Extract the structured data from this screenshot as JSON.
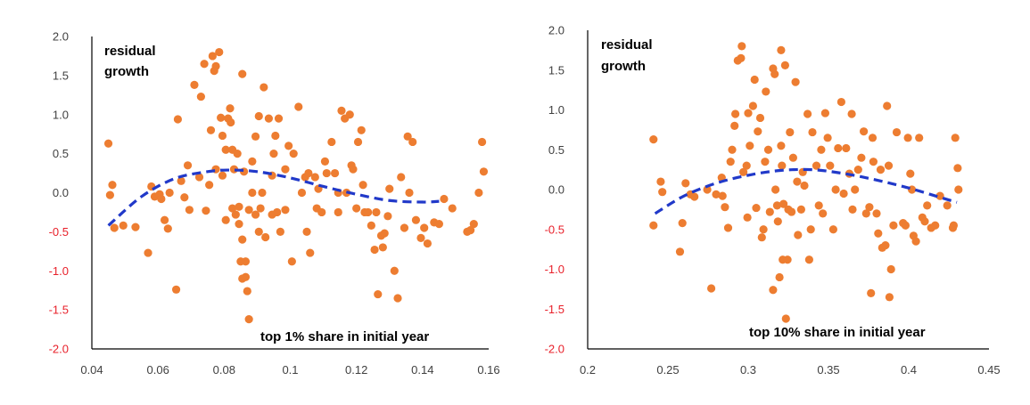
{
  "colors": {
    "point": "#ED7D31",
    "fit": "#2139C9",
    "axis": "#000000",
    "tick_positive": "#404040",
    "tick_negative": "#E8202A"
  },
  "chart_data": [
    {
      "type": "scatter",
      "ylabel": "residual\ngrowth",
      "ylabel_line1": "residual",
      "ylabel_line2": "growth",
      "xlabel": "top 1% share in initial year",
      "xlim": [
        0.04,
        0.16
      ],
      "ylim": [
        -2.0,
        2.0
      ],
      "x_ticks": [
        "0.04",
        "0.06",
        "0.08",
        "0.1",
        "0.12",
        "0.14",
        "0.16"
      ],
      "y_ticks": [
        "2.0",
        "1.5",
        "1.0",
        "0.5",
        "0.0",
        "-0.5",
        "-1.0",
        "-1.5",
        "-2.0"
      ],
      "grid": false,
      "fit_line": {
        "style": "dashed",
        "x": [
          0.045,
          0.055,
          0.065,
          0.075,
          0.082,
          0.09,
          0.1,
          0.11,
          0.12,
          0.13,
          0.14,
          0.145
        ],
        "y": [
          -0.42,
          -0.05,
          0.18,
          0.27,
          0.29,
          0.27,
          0.19,
          0.08,
          -0.02,
          -0.1,
          -0.12,
          -0.11
        ]
      },
      "points": [
        [
          0.045,
          0.63
        ],
        [
          0.0455,
          -0.03
        ],
        [
          0.0462,
          0.1
        ],
        [
          0.0468,
          -0.45
        ],
        [
          0.0495,
          -0.42
        ],
        [
          0.0532,
          -0.44
        ],
        [
          0.057,
          -0.77
        ],
        [
          0.058,
          0.08
        ],
        [
          0.059,
          -0.05
        ],
        [
          0.0605,
          -0.02
        ],
        [
          0.061,
          -0.08
        ],
        [
          0.062,
          -0.35
        ],
        [
          0.063,
          -0.46
        ],
        [
          0.0635,
          0.0
        ],
        [
          0.0655,
          -1.24
        ],
        [
          0.066,
          0.94
        ],
        [
          0.067,
          0.15
        ],
        [
          0.068,
          -0.06
        ],
        [
          0.069,
          0.35
        ],
        [
          0.0695,
          -0.22
        ],
        [
          0.071,
          1.38
        ],
        [
          0.073,
          1.23
        ],
        [
          0.0725,
          0.2
        ],
        [
          0.074,
          1.65
        ],
        [
          0.0745,
          -0.23
        ],
        [
          0.0755,
          0.1
        ],
        [
          0.0765,
          1.75
        ],
        [
          0.0775,
          1.62
        ],
        [
          0.077,
          1.56
        ],
        [
          0.0785,
          1.8
        ],
        [
          0.076,
          0.8
        ],
        [
          0.0775,
          0.3
        ],
        [
          0.079,
          0.96
        ],
        [
          0.0795,
          0.73
        ],
        [
          0.0795,
          0.22
        ],
        [
          0.0805,
          -0.35
        ],
        [
          0.0812,
          0.95
        ],
        [
          0.0818,
          1.08
        ],
        [
          0.082,
          0.9
        ],
        [
          0.0805,
          0.55
        ],
        [
          0.0825,
          0.55
        ],
        [
          0.083,
          0.3
        ],
        [
          0.0825,
          -0.2
        ],
        [
          0.084,
          0.5
        ],
        [
          0.0835,
          -0.28
        ],
        [
          0.0845,
          -0.4
        ],
        [
          0.0855,
          1.52
        ],
        [
          0.086,
          0.27
        ],
        [
          0.0845,
          -0.18
        ],
        [
          0.0855,
          -0.6
        ],
        [
          0.085,
          -0.88
        ],
        [
          0.0865,
          -0.88
        ],
        [
          0.0855,
          -1.1
        ],
        [
          0.0865,
          -1.08
        ],
        [
          0.087,
          -1.26
        ],
        [
          0.0875,
          -1.62
        ],
        [
          0.0885,
          0.4
        ],
        [
          0.0885,
          0.0
        ],
        [
          0.0875,
          -0.22
        ],
        [
          0.0895,
          0.72
        ],
        [
          0.0895,
          -0.28
        ],
        [
          0.0905,
          0.98
        ],
        [
          0.091,
          -0.2
        ],
        [
          0.0905,
          -0.5
        ],
        [
          0.092,
          1.35
        ],
        [
          0.0915,
          0.0
        ],
        [
          0.0925,
          -0.57
        ],
        [
          0.0935,
          0.95
        ],
        [
          0.0945,
          0.22
        ],
        [
          0.0945,
          -0.28
        ],
        [
          0.0955,
          0.73
        ],
        [
          0.095,
          0.5
        ],
        [
          0.096,
          -0.25
        ],
        [
          0.0965,
          0.95
        ],
        [
          0.097,
          -0.5
        ],
        [
          0.0985,
          0.3
        ],
        [
          0.0985,
          -0.22
        ],
        [
          0.0995,
          0.6
        ],
        [
          0.1005,
          -0.88
        ],
        [
          0.101,
          0.5
        ],
        [
          0.1025,
          1.1
        ],
        [
          0.1035,
          0.0
        ],
        [
          0.1045,
          0.2
        ],
        [
          0.105,
          -0.5
        ],
        [
          0.1055,
          0.25
        ],
        [
          0.106,
          -0.77
        ],
        [
          0.1075,
          0.2
        ],
        [
          0.108,
          -0.2
        ],
        [
          0.1085,
          0.05
        ],
        [
          0.1095,
          -0.25
        ],
        [
          0.1105,
          0.4
        ],
        [
          0.111,
          0.25
        ],
        [
          0.1125,
          0.65
        ],
        [
          0.1135,
          0.25
        ],
        [
          0.1145,
          0.0
        ],
        [
          0.1145,
          -0.25
        ],
        [
          0.1155,
          1.05
        ],
        [
          0.1165,
          0.95
        ],
        [
          0.117,
          0.0
        ],
        [
          0.118,
          1.0
        ],
        [
          0.1185,
          0.35
        ],
        [
          0.119,
          0.3
        ],
        [
          0.12,
          -0.2
        ],
        [
          0.1205,
          0.65
        ],
        [
          0.1215,
          0.8
        ],
        [
          0.122,
          0.1
        ],
        [
          0.1225,
          -0.25
        ],
        [
          0.1235,
          -0.25
        ],
        [
          0.1245,
          -0.42
        ],
        [
          0.1255,
          -0.73
        ],
        [
          0.126,
          -0.25
        ],
        [
          0.1265,
          -1.3
        ],
        [
          0.1275,
          -0.55
        ],
        [
          0.128,
          -0.7
        ],
        [
          0.1285,
          -0.52
        ],
        [
          0.1295,
          -0.3
        ],
        [
          0.13,
          0.05
        ],
        [
          0.1315,
          -1.0
        ],
        [
          0.1325,
          -1.35
        ],
        [
          0.1335,
          0.2
        ],
        [
          0.1345,
          -0.45
        ],
        [
          0.1355,
          0.72
        ],
        [
          0.136,
          0.0
        ],
        [
          0.137,
          0.65
        ],
        [
          0.138,
          -0.35
        ],
        [
          0.1395,
          -0.58
        ],
        [
          0.1405,
          -0.45
        ],
        [
          0.1415,
          -0.65
        ],
        [
          0.1435,
          -0.38
        ],
        [
          0.145,
          -0.4
        ],
        [
          0.1465,
          -0.08
        ],
        [
          0.149,
          -0.2
        ],
        [
          0.1535,
          -0.5
        ],
        [
          0.1545,
          -0.48
        ],
        [
          0.1555,
          -0.4
        ],
        [
          0.157,
          0.0
        ],
        [
          0.158,
          0.65
        ],
        [
          0.1585,
          0.27
        ]
      ]
    },
    {
      "type": "scatter",
      "ylabel": "residual\ngrowth",
      "ylabel_line1": "residual",
      "ylabel_line2": "growth",
      "xlabel": "top 10% share in initial year",
      "xlim": [
        0.2,
        0.45
      ],
      "ylim": [
        -2.0,
        2.0
      ],
      "x_ticks": [
        "0.2",
        "0.25",
        "0.3",
        "0.35",
        "0.4",
        "0.45"
      ],
      "y_ticks": [
        "2.0",
        "1.5",
        "1.0",
        "0.5",
        "0.0",
        "-0.5",
        "-1.0",
        "-1.5",
        "-2.0"
      ],
      "grid": false,
      "fit_line": {
        "style": "dashed",
        "x": [
          0.242,
          0.26,
          0.28,
          0.3,
          0.32,
          0.34,
          0.36,
          0.38,
          0.4,
          0.42,
          0.43
        ],
        "y": [
          -0.3,
          -0.08,
          0.08,
          0.18,
          0.24,
          0.25,
          0.2,
          0.12,
          0.02,
          -0.1,
          -0.16
        ]
      },
      "points": [
        [
          0.241,
          0.63
        ],
        [
          0.241,
          -0.45
        ],
        [
          0.2455,
          0.1
        ],
        [
          0.2465,
          -0.03
        ],
        [
          0.2575,
          -0.78
        ],
        [
          0.259,
          -0.42
        ],
        [
          0.261,
          0.08
        ],
        [
          0.264,
          -0.06
        ],
        [
          0.2665,
          -0.09
        ],
        [
          0.2745,
          0.0
        ],
        [
          0.277,
          -1.24
        ],
        [
          0.28,
          -0.06
        ],
        [
          0.2835,
          0.15
        ],
        [
          0.284,
          -0.08
        ],
        [
          0.2855,
          -0.22
        ],
        [
          0.2875,
          -0.48
        ],
        [
          0.289,
          0.35
        ],
        [
          0.29,
          0.5
        ],
        [
          0.2915,
          0.8
        ],
        [
          0.292,
          0.95
        ],
        [
          0.2935,
          1.62
        ],
        [
          0.2955,
          1.65
        ],
        [
          0.296,
          1.8
        ],
        [
          0.297,
          0.22
        ],
        [
          0.299,
          0.3
        ],
        [
          0.3,
          0.96
        ],
        [
          0.2995,
          -0.35
        ],
        [
          0.301,
          0.55
        ],
        [
          0.303,
          1.05
        ],
        [
          0.304,
          1.38
        ],
        [
          0.305,
          -0.23
        ],
        [
          0.306,
          0.73
        ],
        [
          0.3075,
          0.9
        ],
        [
          0.3085,
          -0.6
        ],
        [
          0.3095,
          -0.5
        ],
        [
          0.3105,
          0.35
        ],
        [
          0.311,
          1.23
        ],
        [
          0.3125,
          0.5
        ],
        [
          0.3135,
          -0.28
        ],
        [
          0.3155,
          -1.26
        ],
        [
          0.3155,
          1.52
        ],
        [
          0.3165,
          1.45
        ],
        [
          0.317,
          0.0
        ],
        [
          0.318,
          -0.2
        ],
        [
          0.3185,
          -0.4
        ],
        [
          0.3195,
          -1.1
        ],
        [
          0.3205,
          1.75
        ],
        [
          0.3205,
          0.55
        ],
        [
          0.321,
          0.3
        ],
        [
          0.3215,
          -0.88
        ],
        [
          0.322,
          -0.18
        ],
        [
          0.323,
          1.56
        ],
        [
          0.3235,
          -1.62
        ],
        [
          0.3245,
          -0.88
        ],
        [
          0.325,
          -0.25
        ],
        [
          0.326,
          0.72
        ],
        [
          0.327,
          -0.28
        ],
        [
          0.328,
          0.4
        ],
        [
          0.3295,
          1.35
        ],
        [
          0.3305,
          0.1
        ],
        [
          0.331,
          -0.57
        ],
        [
          0.333,
          -0.25
        ],
        [
          0.334,
          0.22
        ],
        [
          0.335,
          0.05
        ],
        [
          0.337,
          0.95
        ],
        [
          0.338,
          -0.88
        ],
        [
          0.339,
          -0.5
        ],
        [
          0.34,
          0.72
        ],
        [
          0.3425,
          0.3
        ],
        [
          0.344,
          -0.2
        ],
        [
          0.3455,
          0.5
        ],
        [
          0.3465,
          -0.3
        ],
        [
          0.348,
          0.96
        ],
        [
          0.3495,
          0.65
        ],
        [
          0.351,
          0.3
        ],
        [
          0.353,
          -0.5
        ],
        [
          0.3545,
          0.0
        ],
        [
          0.356,
          0.52
        ],
        [
          0.358,
          1.1
        ],
        [
          0.3595,
          -0.05
        ],
        [
          0.361,
          0.52
        ],
        [
          0.363,
          0.2
        ],
        [
          0.3645,
          0.95
        ],
        [
          0.365,
          -0.25
        ],
        [
          0.3665,
          0.0
        ],
        [
          0.3685,
          0.25
        ],
        [
          0.3705,
          0.4
        ],
        [
          0.372,
          0.73
        ],
        [
          0.3735,
          -0.3
        ],
        [
          0.3755,
          -0.22
        ],
        [
          0.3765,
          -1.3
        ],
        [
          0.3775,
          0.65
        ],
        [
          0.378,
          0.35
        ],
        [
          0.38,
          -0.3
        ],
        [
          0.381,
          -0.55
        ],
        [
          0.3825,
          0.25
        ],
        [
          0.3835,
          -0.73
        ],
        [
          0.3855,
          -0.7
        ],
        [
          0.3865,
          1.05
        ],
        [
          0.3875,
          0.3
        ],
        [
          0.388,
          -1.35
        ],
        [
          0.389,
          -1.0
        ],
        [
          0.3905,
          -0.45
        ],
        [
          0.3925,
          0.72
        ],
        [
          0.3965,
          -0.42
        ],
        [
          0.398,
          -0.45
        ],
        [
          0.3995,
          0.65
        ],
        [
          0.401,
          0.2
        ],
        [
          0.402,
          0.0
        ],
        [
          0.403,
          -0.58
        ],
        [
          0.4045,
          -0.65
        ],
        [
          0.4065,
          0.65
        ],
        [
          0.4085,
          -0.35
        ],
        [
          0.41,
          -0.4
        ],
        [
          0.4115,
          -0.2
        ],
        [
          0.414,
          -0.48
        ],
        [
          0.4165,
          -0.45
        ],
        [
          0.4195,
          -0.08
        ],
        [
          0.424,
          -0.2
        ],
        [
          0.4275,
          -0.48
        ],
        [
          0.428,
          -0.45
        ],
        [
          0.429,
          0.65
        ],
        [
          0.4305,
          0.27
        ],
        [
          0.431,
          0.0
        ]
      ]
    }
  ]
}
